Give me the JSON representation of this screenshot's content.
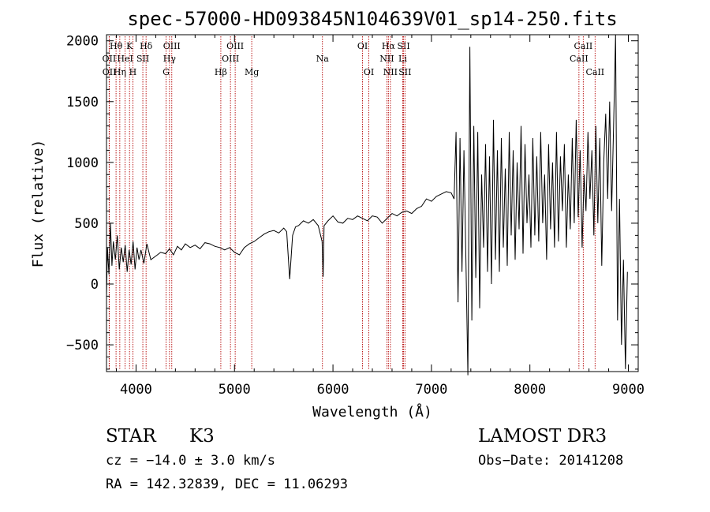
{
  "chart_data": {
    "type": "line",
    "title": "spec-57000-HD093845N104639V01_sp14-250.fits",
    "xlabel": "Wavelength (Å)",
    "ylabel": "Flux (relative)",
    "xlim": [
      3700,
      9100
    ],
    "ylim": [
      -720,
      2050
    ],
    "x_ticks": [
      4000,
      5000,
      6000,
      7000,
      8000,
      9000
    ],
    "y_ticks": [
      -500,
      0,
      500,
      1000,
      1500,
      2000
    ],
    "grid": false,
    "line_color": "#000000",
    "marker_color": "#b30000",
    "spectrum": {
      "x": [
        3700,
        3710,
        3725,
        3740,
        3755,
        3770,
        3790,
        3810,
        3830,
        3850,
        3870,
        3890,
        3910,
        3930,
        3950,
        3970,
        3990,
        4010,
        4030,
        4050,
        4080,
        4110,
        4150,
        4200,
        4250,
        4300,
        4340,
        4380,
        4420,
        4460,
        4500,
        4550,
        4600,
        4650,
        4700,
        4750,
        4800,
        4850,
        4900,
        4950,
        5000,
        5050,
        5100,
        5150,
        5200,
        5250,
        5300,
        5350,
        5400,
        5450,
        5500,
        5530,
        5560,
        5590,
        5620,
        5650,
        5700,
        5750,
        5800,
        5850,
        5890,
        5900,
        5910,
        5950,
        6000,
        6050,
        6100,
        6150,
        6200,
        6250,
        6300,
        6350,
        6400,
        6450,
        6500,
        6550,
        6600,
        6650,
        6700,
        6750,
        6800,
        6850,
        6900,
        6950,
        7000,
        7050,
        7100,
        7150,
        7200,
        7230,
        7250,
        7270,
        7290,
        7310,
        7330,
        7350,
        7370,
        7390,
        7410,
        7430,
        7450,
        7470,
        7490,
        7510,
        7530,
        7550,
        7570,
        7590,
        7610,
        7630,
        7650,
        7670,
        7690,
        7710,
        7730,
        7750,
        7770,
        7790,
        7810,
        7830,
        7850,
        7870,
        7890,
        7910,
        7930,
        7950,
        7970,
        7990,
        8010,
        8030,
        8050,
        8070,
        8090,
        8110,
        8130,
        8150,
        8170,
        8190,
        8210,
        8230,
        8250,
        8270,
        8290,
        8310,
        8330,
        8350,
        8370,
        8390,
        8410,
        8430,
        8450,
        8470,
        8490,
        8510,
        8530,
        8550,
        8570,
        8590,
        8610,
        8630,
        8650,
        8670,
        8690,
        8710,
        8730,
        8750,
        8770,
        8790,
        8810,
        8830,
        8850,
        8870,
        8890,
        8910,
        8930,
        8950,
        8970,
        8990
      ],
      "y": [
        -100,
        300,
        80,
        500,
        150,
        350,
        200,
        400,
        120,
        300,
        180,
        320,
        100,
        280,
        160,
        350,
        120,
        300,
        200,
        280,
        170,
        330,
        200,
        230,
        260,
        250,
        290,
        240,
        310,
        280,
        330,
        300,
        320,
        290,
        340,
        330,
        310,
        300,
        280,
        300,
        260,
        240,
        300,
        330,
        350,
        380,
        410,
        430,
        440,
        420,
        460,
        430,
        40,
        400,
        470,
        480,
        520,
        500,
        530,
        480,
        350,
        60,
        480,
        520,
        560,
        510,
        500,
        540,
        530,
        560,
        540,
        520,
        560,
        550,
        500,
        540,
        580,
        560,
        590,
        600,
        580,
        620,
        640,
        700,
        680,
        720,
        740,
        760,
        750,
        700,
        1250,
        -150,
        1200,
        100,
        1100,
        200,
        -750,
        1950,
        -300,
        1300,
        50,
        1250,
        -200,
        900,
        300,
        1150,
        100,
        1050,
        0,
        1350,
        200,
        1100,
        100,
        1200,
        300,
        950,
        150,
        1250,
        400,
        1100,
        200,
        1000,
        450,
        1300,
        250,
        1150,
        500,
        900,
        300,
        1200,
        400,
        1050,
        350,
        1250,
        500,
        900,
        200,
        1150,
        450,
        1000,
        300,
        1250,
        350,
        1050,
        600,
        1150,
        300,
        900,
        450,
        1200,
        500,
        1350,
        550,
        1100,
        300,
        900,
        600,
        1250,
        700,
        1100,
        400,
        1300,
        500,
        1200,
        150,
        1000,
        1400,
        700,
        1500,
        600,
        1300,
        2050,
        -300,
        700,
        -500,
        200,
        -700,
        100
      ],
      "note": ""
    },
    "line_markers": [
      {
        "label": "Hθ",
        "x": 3797,
        "row": 0
      },
      {
        "label": "OII",
        "x": 3727,
        "row": 1
      },
      {
        "label": "OII",
        "x": 3729,
        "row": 2
      },
      {
        "label": "K",
        "x": 3934,
        "row": 0
      },
      {
        "label": "HeI",
        "x": 3889,
        "row": 1
      },
      {
        "label": "Hη",
        "x": 3835,
        "row": 2
      },
      {
        "label": "SII",
        "x": 4069,
        "row": 1
      },
      {
        "label": "H",
        "x": 3968,
        "row": 2
      },
      {
        "label": "Hδ",
        "x": 4102,
        "row": 0
      },
      {
        "label": "OIII",
        "x": 4363,
        "row": 0
      },
      {
        "label": "Hγ",
        "x": 4340,
        "row": 1
      },
      {
        "label": "G",
        "x": 4305,
        "row": 2
      },
      {
        "label": "Hβ",
        "x": 4861,
        "row": 2
      },
      {
        "label": "OIII",
        "x": 5007,
        "row": 0
      },
      {
        "label": "OIII",
        "x": 4959,
        "row": 1
      },
      {
        "label": "Mg",
        "x": 5175,
        "row": 2
      },
      {
        "label": "Na",
        "x": 5893,
        "row": 1
      },
      {
        "label": "OI",
        "x": 6300,
        "row": 0
      },
      {
        "label": "OI",
        "x": 6364,
        "row": 2
      },
      {
        "label": "Hα",
        "x": 6563,
        "row": 0
      },
      {
        "label": "NII",
        "x": 6548,
        "row": 1
      },
      {
        "label": "NII",
        "x": 6583,
        "row": 2
      },
      {
        "label": "SII",
        "x": 6717,
        "row": 0
      },
      {
        "label": "Li",
        "x": 6708,
        "row": 1
      },
      {
        "label": "SII",
        "x": 6731,
        "row": 2
      },
      {
        "label": "CaII",
        "x": 8542,
        "row": 0
      },
      {
        "label": "CaII",
        "x": 8498,
        "row": 1
      },
      {
        "label": "CaII",
        "x": 8662,
        "row": 2
      }
    ]
  },
  "info": {
    "class": "STAR",
    "subclass": "K3",
    "cz": "cz = −14.0 ± 3.0 km/s",
    "radec": "RA = 142.32839, DEC =  11.06293",
    "survey": "LAMOST DR3",
    "obsdate": "Obs−Date: 20141208"
  }
}
